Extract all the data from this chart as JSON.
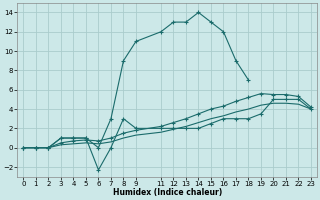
{
  "xlabel": "Humidex (Indice chaleur)",
  "bg_color": "#cce8e8",
  "line_color": "#1a6b6b",
  "grid_color": "#aacccc",
  "ylim": [
    -3,
    15
  ],
  "xlim": [
    -0.5,
    23.5
  ],
  "line1_x": [
    0,
    1,
    2,
    3,
    4,
    5,
    6,
    7,
    8,
    9,
    11,
    12,
    13,
    14,
    15,
    16,
    17,
    18
  ],
  "line1_y": [
    0,
    0,
    0,
    1,
    1,
    1,
    0,
    3,
    9,
    11,
    12,
    13,
    13,
    14,
    13,
    12,
    9,
    7
  ],
  "line2_x": [
    0,
    1,
    2,
    3,
    4,
    5,
    6,
    7,
    8,
    9,
    11,
    12,
    13,
    14,
    15,
    16,
    17,
    18,
    19,
    20,
    21,
    22,
    23
  ],
  "line2_y": [
    0,
    0,
    0,
    1,
    1,
    1,
    -2.3,
    0,
    3,
    2,
    2,
    2,
    2,
    2,
    2.5,
    3,
    3,
    3,
    3.5,
    5,
    5,
    5,
    4
  ],
  "line3_x": [
    0,
    1,
    2,
    3,
    4,
    5,
    6,
    7,
    8,
    9,
    11,
    12,
    13,
    14,
    15,
    16,
    17,
    18,
    19,
    20,
    21,
    22,
    23
  ],
  "line3_y": [
    0,
    0,
    0,
    0.5,
    0.7,
    0.8,
    0.7,
    1.0,
    1.5,
    1.8,
    2.2,
    2.6,
    3.0,
    3.5,
    4.0,
    4.3,
    4.8,
    5.2,
    5.6,
    5.5,
    5.5,
    5.3,
    4.2
  ],
  "line4_x": [
    0,
    1,
    2,
    3,
    4,
    5,
    6,
    7,
    8,
    9,
    11,
    12,
    13,
    14,
    15,
    16,
    17,
    18,
    19,
    20,
    21,
    22,
    23
  ],
  "line4_y": [
    0,
    0,
    0,
    0.3,
    0.4,
    0.5,
    0.4,
    0.6,
    1.0,
    1.3,
    1.6,
    1.9,
    2.2,
    2.6,
    3.0,
    3.3,
    3.7,
    4.0,
    4.4,
    4.6,
    4.6,
    4.5,
    4.0
  ],
  "yticks": [
    -2,
    0,
    2,
    4,
    6,
    8,
    10,
    12,
    14
  ],
  "xticks": [
    0,
    1,
    2,
    3,
    4,
    5,
    6,
    7,
    8,
    9,
    11,
    12,
    13,
    14,
    15,
    16,
    17,
    18,
    19,
    20,
    21,
    22,
    23
  ]
}
